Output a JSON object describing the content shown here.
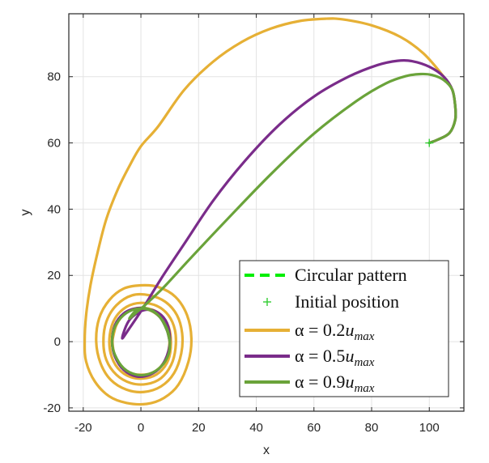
{
  "chart_data": {
    "type": "line",
    "title": "",
    "xlabel": "x",
    "ylabel": "y",
    "xlim": [
      -25,
      112
    ],
    "ylim": [
      -21,
      99
    ],
    "xticks": [
      -20,
      0,
      20,
      40,
      60,
      80,
      100
    ],
    "yticks": [
      -20,
      0,
      20,
      40,
      60,
      80
    ],
    "xtick_labels": [
      "-20",
      "0",
      "20",
      "40",
      "60",
      "80",
      "100"
    ],
    "ytick_labels": [
      "-20",
      "0",
      "20",
      "40",
      "60",
      "80"
    ],
    "grid": true,
    "legend_position": "bottom-right",
    "initial_position": {
      "x": 100,
      "y": 60
    },
    "series": [
      {
        "name": "Circular pattern",
        "label": "Circular pattern",
        "style": "dashed",
        "color": "#00ee00",
        "points": []
      },
      {
        "name": "Initial position",
        "label": "Initial position",
        "style": "marker",
        "marker": "+",
        "color": "#33cc33",
        "points": [
          [
            100,
            60
          ]
        ]
      },
      {
        "name": "alpha = 0.2 u_max",
        "label_prefix": "α = 0.2",
        "label_var": "u",
        "label_sub": "max",
        "color": "#e6b035",
        "style": "solid",
        "points": [
          [
            100,
            60
          ],
          [
            103,
            61
          ],
          [
            107,
            63
          ],
          [
            109,
            67
          ],
          [
            109,
            71
          ],
          [
            108,
            76
          ],
          [
            105,
            80
          ],
          [
            98,
            87
          ],
          [
            90,
            92
          ],
          [
            80,
            95.5
          ],
          [
            70,
            97.3
          ],
          [
            64,
            97.5
          ],
          [
            55,
            96.8
          ],
          [
            45,
            94.5
          ],
          [
            35,
            90.5
          ],
          [
            25,
            84.5
          ],
          [
            15,
            76
          ],
          [
            6,
            65
          ],
          [
            0,
            59
          ],
          [
            -4,
            53
          ],
          [
            -8,
            46
          ],
          [
            -12,
            37
          ],
          [
            -15,
            27
          ],
          [
            -17.5,
            17
          ],
          [
            -19,
            8
          ],
          [
            -19.5,
            0
          ],
          [
            -19,
            -6
          ],
          [
            -16,
            -12
          ],
          [
            -11,
            -16.5
          ],
          [
            -5,
            -18.5
          ],
          [
            2,
            -18.8
          ],
          [
            8,
            -17
          ],
          [
            13,
            -13
          ],
          [
            16.5,
            -6
          ],
          [
            17.5,
            1
          ],
          [
            16,
            8
          ],
          [
            12,
            13.5
          ],
          [
            6,
            16.5
          ],
          [
            0,
            17
          ],
          [
            -6,
            16
          ],
          [
            -11,
            12.5
          ],
          [
            -14.5,
            7
          ],
          [
            -15.5,
            0
          ],
          [
            -14,
            -6.5
          ],
          [
            -10.5,
            -11.5
          ],
          [
            -5,
            -14.5
          ],
          [
            1,
            -15.2
          ],
          [
            7,
            -13.5
          ],
          [
            11.5,
            -9.5
          ],
          [
            14,
            -3.5
          ],
          [
            14.3,
            2.5
          ],
          [
            12.5,
            8
          ],
          [
            8.5,
            12
          ],
          [
            3,
            14
          ],
          [
            -3,
            14
          ],
          [
            -8.5,
            11
          ],
          [
            -12,
            6
          ],
          [
            -13,
            0
          ],
          [
            -12,
            -5.5
          ],
          [
            -8.5,
            -10
          ],
          [
            -3.5,
            -12.5
          ],
          [
            2,
            -12.8
          ],
          [
            7,
            -11
          ],
          [
            10.5,
            -7
          ],
          [
            12,
            -2
          ],
          [
            11.8,
            3.5
          ],
          [
            9.5,
            8
          ],
          [
            5.5,
            10.8
          ],
          [
            0,
            11.7
          ],
          [
            -5,
            10.5
          ],
          [
            -9,
            7
          ],
          [
            -10.8,
            2
          ],
          [
            -10.5,
            -3.5
          ],
          [
            -8,
            -8
          ],
          [
            -3.5,
            -10.7
          ],
          [
            2,
            -11
          ],
          [
            6.5,
            -9.2
          ],
          [
            9.5,
            -5.5
          ],
          [
            10.4,
            -0.5
          ],
          [
            9.6,
            4.5
          ],
          [
            6.8,
            8.2
          ],
          [
            2.5,
            10
          ],
          [
            -2.5,
            9.9
          ],
          [
            -6.8,
            7.5
          ],
          [
            -9.2,
            3.5
          ],
          [
            -9.8,
            -1
          ],
          [
            -8.2,
            -5.8
          ],
          [
            -4.5,
            -9.2
          ],
          [
            0,
            -10
          ],
          [
            4.5,
            -9.2
          ],
          [
            8.2,
            -6
          ],
          [
            9.8,
            -1.5
          ],
          [
            9.5,
            3
          ],
          [
            7,
            7
          ],
          [
            3,
            9.5
          ],
          [
            -1.5,
            10
          ],
          [
            -5.5,
            8.5
          ],
          [
            -8.5,
            5
          ],
          [
            -10,
            0
          ]
        ]
      },
      {
        "name": "alpha = 0.5 u_max",
        "label_prefix": "α = 0.5",
        "label_var": "u",
        "label_sub": "max",
        "color": "#7a2c8a",
        "style": "solid",
        "points": [
          [
            100,
            60
          ],
          [
            103,
            61
          ],
          [
            107,
            63
          ],
          [
            109,
            67
          ],
          [
            109,
            71
          ],
          [
            108,
            76
          ],
          [
            105,
            80
          ],
          [
            100,
            83
          ],
          [
            94,
            84.7
          ],
          [
            89,
            84.8
          ],
          [
            82,
            83.5
          ],
          [
            72,
            80
          ],
          [
            60,
            74
          ],
          [
            48,
            65.5
          ],
          [
            36,
            54.5
          ],
          [
            25,
            42.5
          ],
          [
            15,
            29.5
          ],
          [
            7,
            19
          ],
          [
            1,
            10.5
          ],
          [
            -4,
            4
          ],
          [
            -6.5,
            1
          ],
          [
            -5,
            5
          ],
          [
            -3,
            7.5
          ],
          [
            1,
            9.5
          ],
          [
            5,
            9.2
          ],
          [
            8.5,
            6.5
          ],
          [
            10,
            2
          ],
          [
            9.5,
            -3
          ],
          [
            7,
            -7.5
          ],
          [
            3,
            -10
          ],
          [
            -1.5,
            -10.5
          ],
          [
            -6,
            -8.5
          ],
          [
            -9,
            -4.5
          ],
          [
            -10,
            0
          ],
          [
            -9,
            5
          ],
          [
            -6,
            8.5
          ],
          [
            -2,
            10
          ],
          [
            2.5,
            9.8
          ],
          [
            6.5,
            7.5
          ],
          [
            9,
            3.5
          ],
          [
            10,
            0
          ]
        ]
      },
      {
        "name": "alpha = 0.9 u_max",
        "label_prefix": "α = 0.9",
        "label_var": "u",
        "label_sub": "max",
        "color": "#6aa33a",
        "style": "solid",
        "points": [
          [
            100,
            60
          ],
          [
            103,
            61
          ],
          [
            107,
            63
          ],
          [
            109,
            67
          ],
          [
            109,
            71
          ],
          [
            108,
            76
          ],
          [
            105,
            79
          ],
          [
            101,
            80.5
          ],
          [
            97,
            80.8
          ],
          [
            92,
            80.2
          ],
          [
            85,
            78
          ],
          [
            75,
            72.8
          ],
          [
            60,
            62.8
          ],
          [
            45,
            50.5
          ],
          [
            30,
            37
          ],
          [
            17,
            25
          ],
          [
            8,
            16.5
          ],
          [
            2,
            11.5
          ],
          [
            -2,
            8.5
          ],
          [
            -4,
            7
          ],
          [
            -1.5,
            9.5
          ],
          [
            2,
            10
          ],
          [
            6,
            8
          ],
          [
            9,
            4
          ],
          [
            10,
            0
          ],
          [
            9.5,
            -4
          ],
          [
            7,
            -7.5
          ],
          [
            3,
            -9.7
          ],
          [
            -1.5,
            -10
          ],
          [
            -6,
            -8
          ],
          [
            -9,
            -4
          ],
          [
            -10,
            0
          ],
          [
            -9,
            4.5
          ],
          [
            -6,
            8
          ],
          [
            -2,
            9.8
          ],
          [
            2.5,
            9.7
          ],
          [
            6.5,
            7.5
          ],
          [
            9,
            3.5
          ],
          [
            10,
            0
          ]
        ]
      }
    ]
  }
}
